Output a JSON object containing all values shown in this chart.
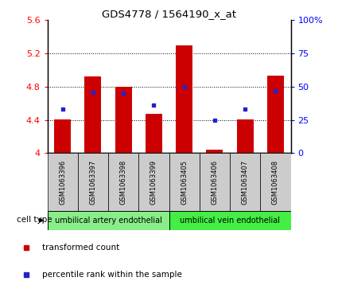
{
  "title": "GDS4778 / 1564190_x_at",
  "samples": [
    "GSM1063396",
    "GSM1063397",
    "GSM1063398",
    "GSM1063399",
    "GSM1063405",
    "GSM1063406",
    "GSM1063407",
    "GSM1063408"
  ],
  "transformed_counts": [
    4.41,
    4.92,
    4.8,
    4.47,
    5.3,
    4.04,
    4.41,
    4.93
  ],
  "percentile_ranks": [
    33,
    46,
    45,
    36,
    50,
    25,
    33,
    47
  ],
  "ylim_left": [
    4.0,
    5.6
  ],
  "ylim_right": [
    0,
    100
  ],
  "yticks_left": [
    4.0,
    4.4,
    4.8,
    5.2,
    5.6
  ],
  "ytick_labels_left": [
    "4",
    "4.4",
    "4.8",
    "5.2",
    "5.6"
  ],
  "yticks_right": [
    0,
    25,
    50,
    75,
    100
  ],
  "ytick_labels_right": [
    "0",
    "25",
    "50",
    "75",
    "100%"
  ],
  "bar_color": "#cc0000",
  "dot_color": "#2222cc",
  "cell_types": [
    "umbilical artery endothelial",
    "umbilical vein endothelial"
  ],
  "cell_type_color1": "#88ee88",
  "cell_type_color2": "#44ee44",
  "cell_type_label": "cell type",
  "legend_labels": [
    "transformed count",
    "percentile rank within the sample"
  ],
  "legend_colors": [
    "#cc0000",
    "#2222cc"
  ],
  "bar_bottom": 4.0,
  "sample_bg_color": "#cccccc",
  "grid_yticks": [
    4.4,
    4.8,
    5.2
  ],
  "n_artery": 4,
  "n_vein": 4
}
